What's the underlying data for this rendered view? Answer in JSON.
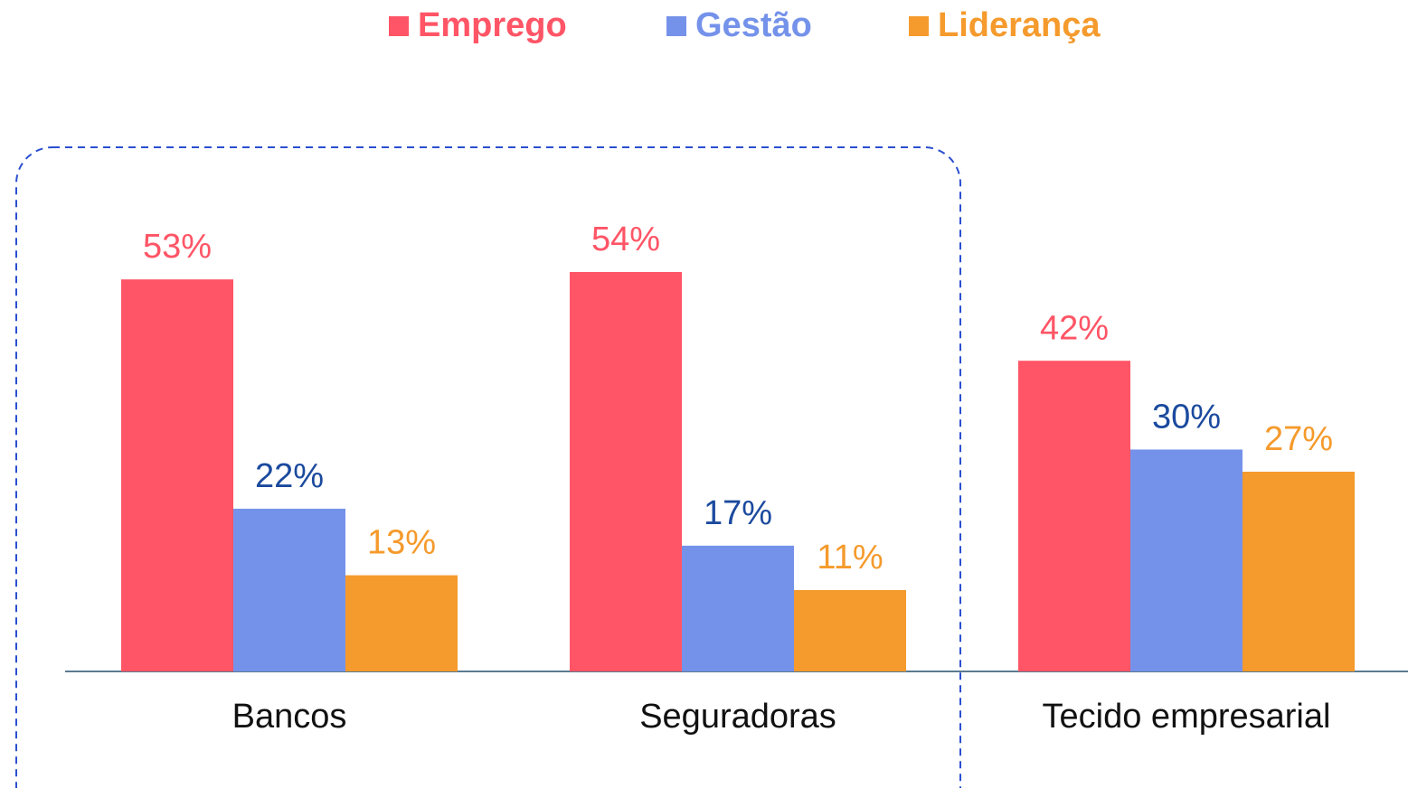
{
  "chart_data": {
    "type": "bar",
    "categories": [
      "Bancos",
      "Seguradoras",
      "Tecido empresarial"
    ],
    "series": [
      {
        "name": "Emprego",
        "color": "#ff5566",
        "label_color": "#ff5566",
        "values": [
          53,
          54,
          42
        ],
        "value_labels": [
          "53%",
          "54%",
          "42%"
        ]
      },
      {
        "name": "Gestão",
        "color": "#7592ea",
        "label_color": "#1b4a9e",
        "values": [
          22,
          17,
          30
        ],
        "value_labels": [
          "22%",
          "17%",
          "30%"
        ]
      },
      {
        "name": "Liderança",
        "color": "#f59a2c",
        "label_color": "#f59a2c",
        "values": [
          13,
          11,
          27
        ],
        "value_labels": [
          "13%",
          "11%",
          "27%"
        ]
      }
    ],
    "legend": "top"
  }
}
